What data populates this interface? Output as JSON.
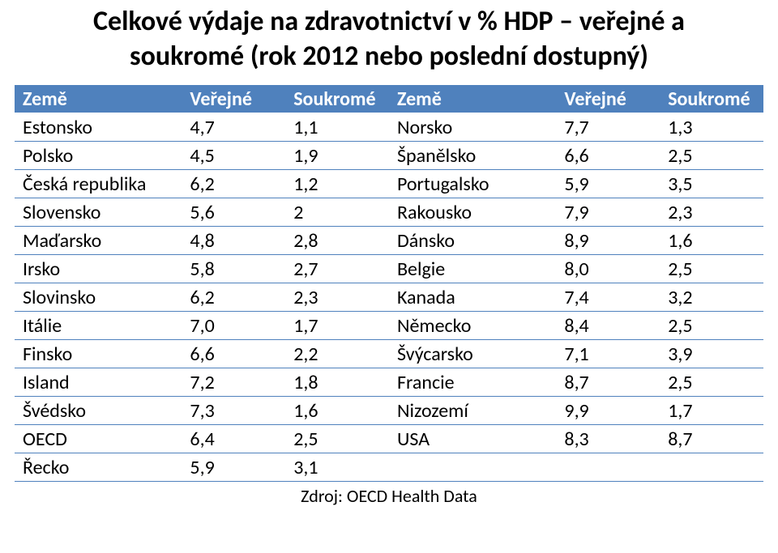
{
  "title_line1": "Celkové výdaje na zdravotnictví v % HDP – veřejné a",
  "title_line2": "soukromé (rok 2012 nebo poslední dostupný)",
  "source": "Zdroj: OECD Health Data",
  "table": {
    "type": "table",
    "header_bg": "#4f81bd",
    "header_text_color": "#ffffff",
    "row_border_color": "#4f81bd",
    "header_border_color": "#ffffff",
    "background_color": "#ffffff",
    "font_family": "Calibri",
    "header_fontsize": 24,
    "body_fontsize": 24,
    "col_widths_pct": [
      21,
      13,
      13,
      21,
      13,
      13
    ],
    "columns": [
      "Země",
      "Veřejné",
      "Soukromé",
      "Země",
      "Veřejné",
      "Soukromé"
    ],
    "rows": [
      [
        "Estonsko",
        "4,7",
        "1,1",
        "Norsko",
        "7,7",
        "1,3"
      ],
      [
        "Polsko",
        "4,5",
        "1,9",
        "Španělsko",
        "6,6",
        "2,5"
      ],
      [
        "Česká republika",
        "6,2",
        "1,2",
        "Portugalsko",
        "5,9",
        "3,5"
      ],
      [
        "Slovensko",
        "5,6",
        "2",
        "Rakousko",
        "7,9",
        "2,3"
      ],
      [
        "Maďarsko",
        "4,8",
        "2,8",
        "Dánsko",
        "8,9",
        "1,6"
      ],
      [
        "Irsko",
        "5,8",
        "2,7",
        "Belgie",
        "8,0",
        "2,5"
      ],
      [
        "Slovinsko",
        "6,2",
        "2,3",
        "Kanada",
        "7,4",
        "3,2"
      ],
      [
        "Itálie",
        "7,0",
        "1,7",
        "Německo",
        "8,4",
        "2,5"
      ],
      [
        "Finsko",
        "6,6",
        "2,2",
        "Švýcarsko",
        "7,1",
        "3,9"
      ],
      [
        "Island",
        "7,2",
        "1,8",
        "Francie",
        "8,7",
        "2,5"
      ],
      [
        "Švédsko",
        "7,3",
        "1,6",
        "Nizozemí",
        "9,9",
        "1,7"
      ],
      [
        "OECD",
        "6,4",
        "2,5",
        "USA",
        "8,3",
        "8,7"
      ],
      [
        "Řecko",
        "5,9",
        "3,1",
        "",
        "",
        ""
      ]
    ]
  }
}
